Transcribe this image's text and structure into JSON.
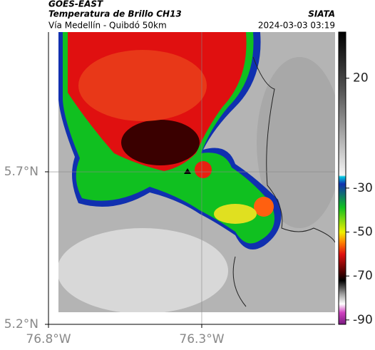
{
  "header": {
    "satellite": "GOES-EAST",
    "product": "Temperatura de Brillo CH13",
    "location": "Vía Medellín - Quibdó 50km",
    "source": "SIATA",
    "datetime": "2024-03-03 03:19"
  },
  "map": {
    "xlim": [
      -76.8,
      -75.865
    ],
    "ylim": [
      5.2,
      6.158
    ],
    "xticks": [
      {
        "value": -76.8,
        "label": "76.8°W"
      },
      {
        "value": -76.3,
        "label": "76.3°W"
      }
    ],
    "yticks": [
      {
        "value": 5.7,
        "label": "5.7°N"
      },
      {
        "value": 5.2,
        "label": "5.2°N"
      }
    ],
    "grid": true
  },
  "colorbar": {
    "lim": [
      -92,
      41
    ],
    "ticks": [
      20,
      -30,
      -50,
      -70,
      -90
    ]
  }
}
